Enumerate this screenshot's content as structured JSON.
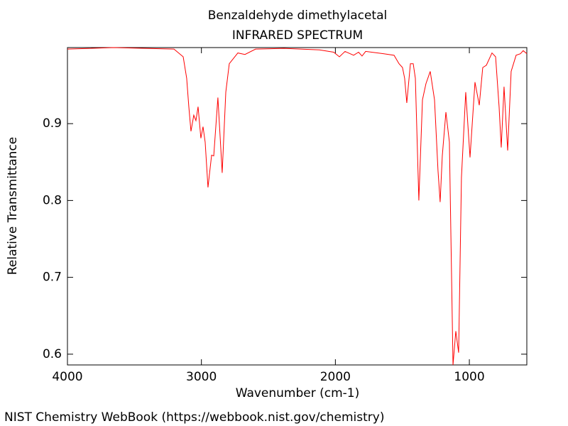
{
  "chart_data": {
    "type": "line",
    "title": "Benzaldehyde dimethylacetal",
    "subtitle": "INFRARED SPECTRUM",
    "x_label": "Wavenumber (cm-1)",
    "y_label": "Relative Transmittance",
    "footer": "NIST Chemistry WebBook (https://webbook.nist.gov/chemistry)",
    "xlim": [
      4000,
      571
    ],
    "ylim": [
      0.586,
      0.999
    ],
    "xticks": [
      4000,
      3000,
      2000,
      1000
    ],
    "yticks": [
      0.6,
      0.7,
      0.8,
      0.9
    ],
    "grid": false,
    "x": [
      4000,
      3656,
      3205,
      3136,
      3110,
      3094,
      3078,
      3057,
      3041,
      3025,
      3004,
      2988,
      2972,
      2951,
      2924,
      2908,
      2877,
      2845,
      2818,
      2792,
      2728,
      2675,
      2596,
      2384,
      2119,
      2013,
      1970,
      1928,
      1864,
      1827,
      1801,
      1774,
      1642,
      1562,
      1525,
      1499,
      1483,
      1467,
      1440,
      1419,
      1403,
      1377,
      1350,
      1324,
      1292,
      1260,
      1234,
      1218,
      1202,
      1175,
      1149,
      1122,
      1101,
      1080,
      1059,
      1027,
      995,
      958,
      926,
      900,
      873,
      831,
      804,
      778,
      762,
      741,
      714,
      688,
      651,
      619,
      598,
      571
    ],
    "series": [
      {
        "name": "Benzaldehyde dimethylacetal",
        "color": "#ff0000",
        "values": [
          0.997,
          0.999,
          0.997,
          0.987,
          0.959,
          0.922,
          0.89,
          0.911,
          0.904,
          0.922,
          0.881,
          0.896,
          0.876,
          0.817,
          0.859,
          0.858,
          0.934,
          0.836,
          0.941,
          0.978,
          0.992,
          0.99,
          0.997,
          0.998,
          0.996,
          0.993,
          0.987,
          0.994,
          0.989,
          0.993,
          0.988,
          0.994,
          0.991,
          0.989,
          0.978,
          0.973,
          0.959,
          0.927,
          0.978,
          0.978,
          0.959,
          0.8,
          0.931,
          0.952,
          0.968,
          0.931,
          0.839,
          0.798,
          0.858,
          0.915,
          0.876,
          0.586,
          0.63,
          0.602,
          0.83,
          0.941,
          0.856,
          0.954,
          0.924,
          0.973,
          0.976,
          0.992,
          0.987,
          0.922,
          0.869,
          0.948,
          0.865,
          0.968,
          0.989,
          0.991,
          0.995,
          0.991
        ]
      }
    ]
  }
}
